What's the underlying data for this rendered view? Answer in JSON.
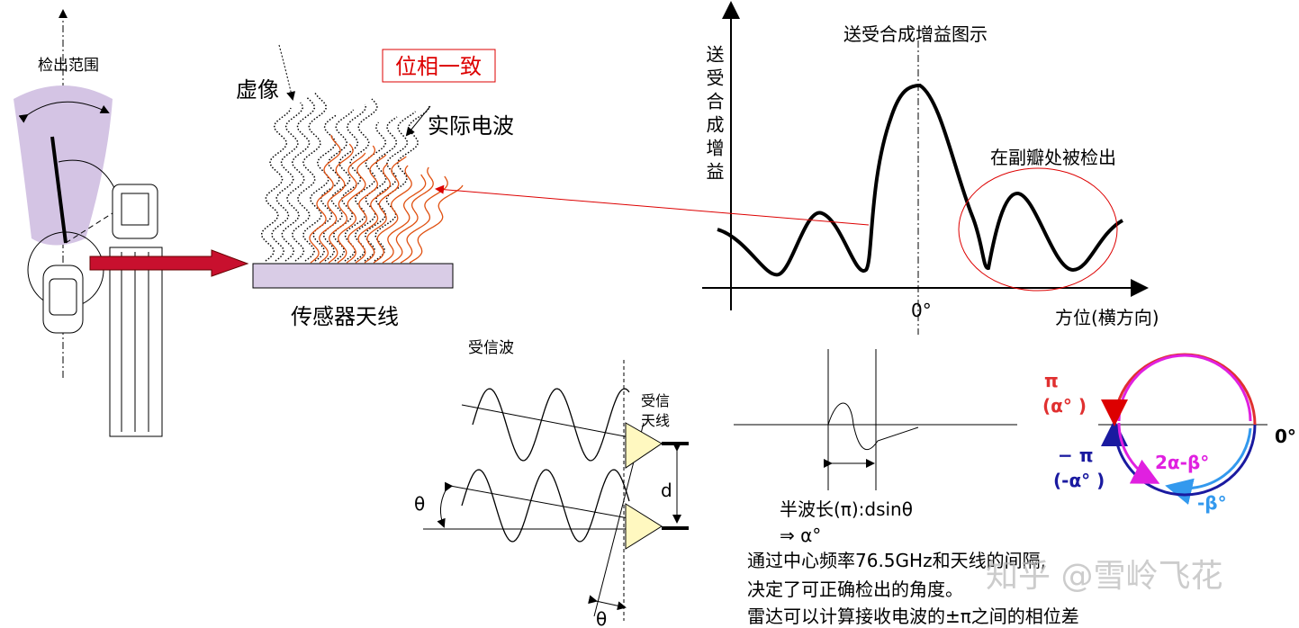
{
  "left": {
    "detection_range": "检出范围"
  },
  "waves": {
    "virtual_image": "虚像",
    "phase_match": "位相一致",
    "actual_wave": "实际电波",
    "sensor_antenna": "传感器天线"
  },
  "gain_chart": {
    "title": "送受合成增益图示",
    "y_label": "送受合成增益",
    "sidelobe_note": "在副瓣处被检出",
    "zero": "0°",
    "x_label": "方位(横方向)"
  },
  "receiver": {
    "received_wave": "受信波",
    "antenna_line1": "受信",
    "antenna_line2": "天线",
    "d": "d",
    "theta_left": "θ",
    "theta_bottom": "θ"
  },
  "phase": {
    "half_wave": "半波长(π):dsinθ",
    "alpha": "⇒ α°"
  },
  "circle": {
    "pi": "π",
    "alpha": "(α° )",
    "neg_pi": "− π",
    "neg_alpha": "(-α° )",
    "diff": "2α-β°",
    "neg_beta": "-β°",
    "zero": "0°"
  },
  "notes": [
    "通过中心频率76.5GHz和天线的间隔,",
    "决定了可正确检出的角度。",
    "雷达可以计算接收电波的±π之间的相位差"
  ],
  "watermark": "知乎 @雪岭飞花"
}
